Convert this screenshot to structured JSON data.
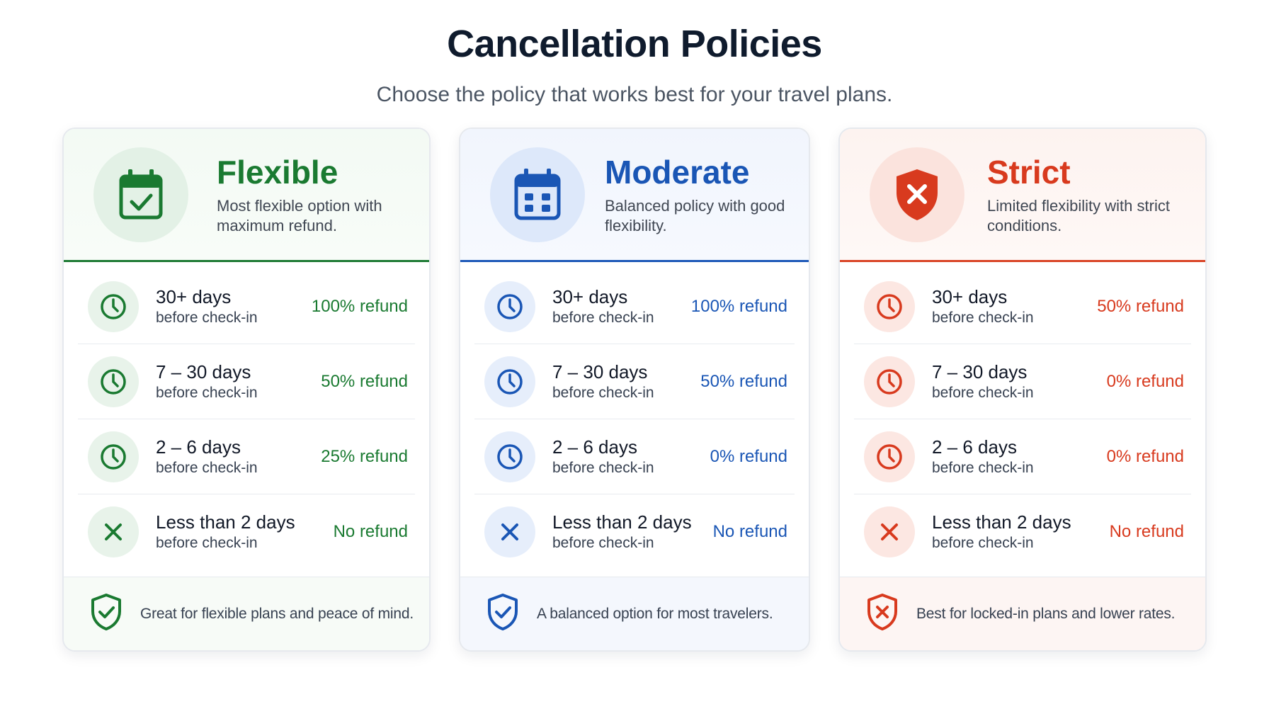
{
  "header": {
    "title": "Cancellation Policies",
    "subtitle": "Choose the policy that works best for your travel plans."
  },
  "colors": {
    "flexible": "#1a7a31",
    "moderate": "#1a56b5",
    "strict": "#d83a1e"
  },
  "policies": [
    {
      "name": "Flexible",
      "description": "Most flexible option with maximum refund.",
      "icon": "calendar-check-icon",
      "rows": [
        {
          "days": "30+ days",
          "sub": "before check-in",
          "refund": "100% refund",
          "icon": "clock-icon"
        },
        {
          "days": "7 – 30 days",
          "sub": "before check-in",
          "refund": "50% refund",
          "icon": "clock-icon"
        },
        {
          "days": "2 – 6 days",
          "sub": "before check-in",
          "refund": "25% refund",
          "icon": "clock-icon"
        },
        {
          "days": "Less than 2 days",
          "sub": "before check-in",
          "refund": "No refund",
          "icon": "x-icon"
        }
      ],
      "footer": "Great for flexible plans and peace of mind.",
      "footer_icon": "shield-check-icon"
    },
    {
      "name": "Moderate",
      "description": "Balanced policy with good flexibility.",
      "icon": "calendar-icon",
      "rows": [
        {
          "days": "30+ days",
          "sub": "before check-in",
          "refund": "100% refund",
          "icon": "clock-icon"
        },
        {
          "days": "7 – 30 days",
          "sub": "before check-in",
          "refund": "50% refund",
          "icon": "clock-icon"
        },
        {
          "days": "2 – 6 days",
          "sub": "before check-in",
          "refund": "0% refund",
          "icon": "clock-icon"
        },
        {
          "days": "Less than 2 days",
          "sub": "before check-in",
          "refund": "No refund",
          "icon": "x-icon"
        }
      ],
      "footer": "A balanced option for most travelers.",
      "footer_icon": "shield-check-icon"
    },
    {
      "name": "Strict",
      "description": "Limited flexibility with strict conditions.",
      "icon": "shield-x-icon",
      "rows": [
        {
          "days": "30+ days",
          "sub": "before check-in",
          "refund": "50% refund",
          "icon": "clock-icon"
        },
        {
          "days": "7 – 30 days",
          "sub": "before check-in",
          "refund": "0% refund",
          "icon": "clock-icon"
        },
        {
          "days": "2 – 6 days",
          "sub": "before check-in",
          "refund": "0% refund",
          "icon": "clock-icon"
        },
        {
          "days": "Less than 2 days",
          "sub": "before check-in",
          "refund": "No refund",
          "icon": "x-icon"
        }
      ],
      "footer": "Best for locked-in plans and lower rates.",
      "footer_icon": "shield-x-icon"
    }
  ]
}
